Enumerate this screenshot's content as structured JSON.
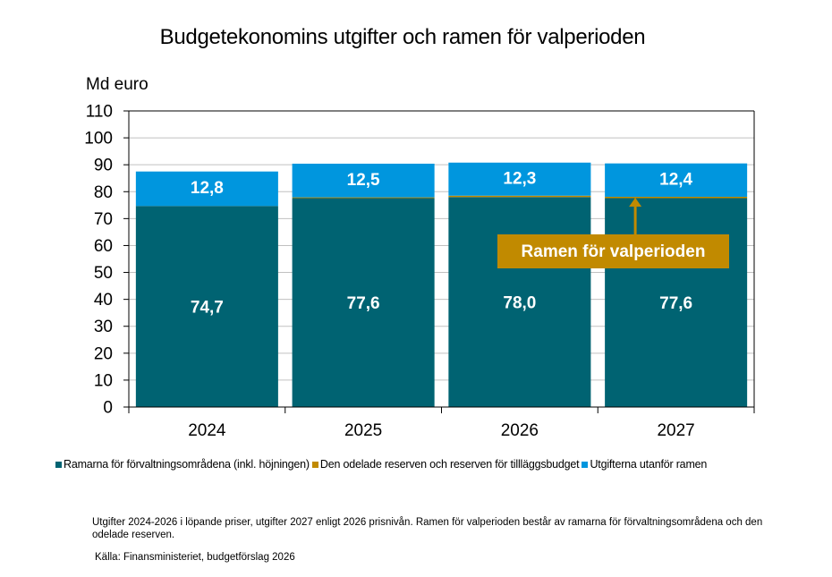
{
  "chart_data": {
    "type": "bar",
    "stacked": true,
    "title": "Budgetekonomins utgifter och ramen för valperioden",
    "ylabel": "Md euro",
    "xlabel": "",
    "ylim": [
      0,
      110
    ],
    "yticks": [
      0,
      10,
      20,
      30,
      40,
      50,
      60,
      70,
      80,
      90,
      100,
      110
    ],
    "grid": true,
    "legend_position": "bottom",
    "categories": [
      "2024",
      "2025",
      "2026",
      "2027"
    ],
    "series": [
      {
        "name": "Ramarna för förvaltningsområdena (inkl. höjningen)",
        "color": "#006372",
        "values": [
          74.7,
          77.6,
          78.0,
          77.6
        ],
        "labels": [
          "74,7",
          "77,6",
          "78,0",
          "77,6"
        ]
      },
      {
        "name": "Den odelade reserven och reserven för tillläggsbudget",
        "color": "#C18A00",
        "values": [
          0.0,
          0.3,
          0.5,
          0.5
        ],
        "labels": [
          "",
          "",
          "",
          ""
        ]
      },
      {
        "name": "Utgifterna utanför ramen",
        "color": "#0096DE",
        "values": [
          12.8,
          12.5,
          12.3,
          12.4
        ],
        "labels": [
          "12,8",
          "12,5",
          "12,3",
          "12,4"
        ]
      }
    ],
    "annotation": {
      "text": "Ramen för valperioden",
      "points_to": "2027",
      "color": "#C18A00"
    }
  },
  "note": "Utgifter 2024-2026 i löpande priser, utgifter 2027 enligt 2026 prisnivån. Ramen för valperioden består av ramarna för förvaltningsområdena och den odelade reserven.",
  "source": "Källa: Finansministeriet, budgetförslag 2026"
}
